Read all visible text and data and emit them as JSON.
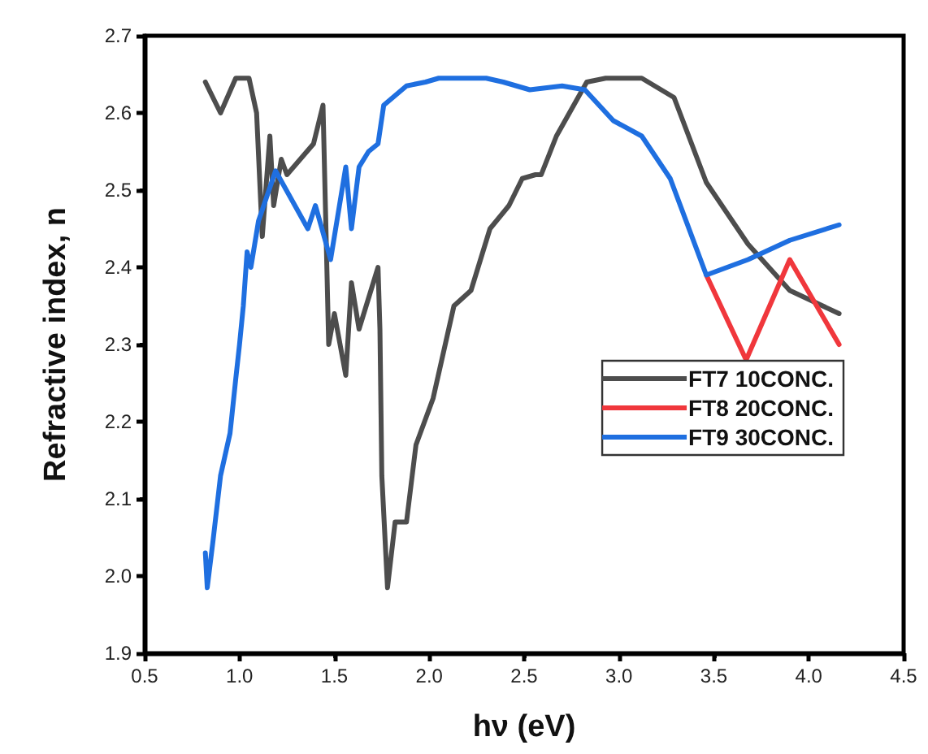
{
  "chart_data": {
    "type": "line",
    "xlabel": "hν (eV)",
    "ylabel": "Refractive index, n",
    "xlim": [
      0.5,
      4.5
    ],
    "ylim": [
      1.9,
      2.7
    ],
    "xticks": [
      0.5,
      {
        "value": 1,
        "label": "1.0"
      },
      1.5,
      {
        "value": 2,
        "label": "2.0"
      },
      2.5,
      {
        "value": 3,
        "label": "3.0"
      },
      3.5,
      {
        "value": 4,
        "label": "4.0"
      },
      4.5
    ],
    "yticks": [
      1.9,
      {
        "value": 2,
        "label": "2.0"
      },
      2.1,
      2.2,
      2.3,
      2.4,
      2.5,
      2.6,
      2.7
    ],
    "grid": false,
    "legend": "right",
    "marker": "none",
    "line_style": "solid",
    "series": [
      {
        "name": "FT7 10CONC.",
        "color": "#4d4d4d",
        "x": [
          0.82,
          0.9,
          0.98,
          1.05,
          1.09,
          1.12,
          1.16,
          1.18,
          1.22,
          1.25,
          1.39,
          1.44,
          1.47,
          1.5,
          1.56,
          1.59,
          1.63,
          1.73,
          1.74,
          1.75,
          1.78,
          1.82,
          1.88,
          1.93,
          2.02,
          2.13,
          2.22,
          2.32,
          2.42,
          2.49,
          2.56,
          2.59,
          2.67,
          2.83,
          2.93,
          3.12,
          3.29,
          3.46,
          3.68,
          3.9,
          4.16
        ],
        "values": [
          2.64,
          2.6,
          2.645,
          2.645,
          2.6,
          2.44,
          2.57,
          2.48,
          2.54,
          2.52,
          2.56,
          2.61,
          2.3,
          2.34,
          2.26,
          2.38,
          2.32,
          2.4,
          2.32,
          2.13,
          1.985,
          2.07,
          2.07,
          2.17,
          2.23,
          2.35,
          2.37,
          2.45,
          2.48,
          2.515,
          2.52,
          2.52,
          2.57,
          2.64,
          2.645,
          2.645,
          2.62,
          2.51,
          2.43,
          2.37,
          2.34
        ]
      },
      {
        "name": "FT8 20CONC.",
        "color": "#f0373c",
        "x": [
          3.46,
          3.67,
          3.9,
          4.16
        ],
        "values": [
          2.39,
          2.28,
          2.41,
          2.3
        ]
      },
      {
        "name": "FT9 30CONC.",
        "color": "#1f6fe0",
        "x": [
          0.82,
          0.83,
          0.86,
          0.9,
          0.95,
          0.98,
          1.0,
          1.02,
          1.04,
          1.06,
          1.1,
          1.19,
          1.36,
          1.4,
          1.48,
          1.56,
          1.59,
          1.63,
          1.68,
          1.73,
          1.76,
          1.88,
          1.98,
          2.05,
          2.3,
          2.39,
          2.53,
          2.7,
          2.82,
          2.97,
          3.12,
          3.27,
          3.46,
          3.68,
          3.9,
          4.16
        ],
        "values": [
          2.03,
          1.985,
          2.045,
          2.13,
          2.185,
          2.255,
          2.3,
          2.35,
          2.42,
          2.4,
          2.46,
          2.525,
          2.45,
          2.48,
          2.41,
          2.53,
          2.45,
          2.53,
          2.55,
          2.56,
          2.61,
          2.635,
          2.64,
          2.645,
          2.645,
          2.64,
          2.63,
          2.635,
          2.63,
          2.59,
          2.57,
          2.515,
          2.39,
          2.41,
          2.435,
          2.455
        ]
      }
    ]
  }
}
